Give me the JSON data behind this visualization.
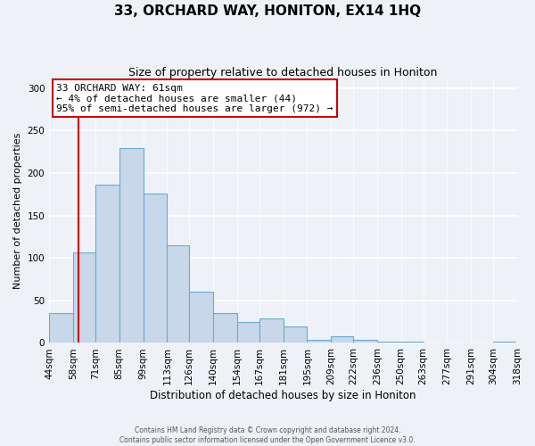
{
  "title": "33, ORCHARD WAY, HONITON, EX14 1HQ",
  "subtitle": "Size of property relative to detached houses in Honiton",
  "xlabel": "Distribution of detached houses by size in Honiton",
  "ylabel": "Number of detached properties",
  "bar_left_edges": [
    44,
    58,
    71,
    85,
    99,
    113,
    126,
    140,
    154,
    167,
    181,
    195,
    209,
    222,
    236,
    250,
    263,
    277,
    291,
    304
  ],
  "bar_heights": [
    35,
    107,
    186,
    229,
    176,
    115,
    60,
    35,
    25,
    29,
    19,
    4,
    8,
    4,
    2,
    2,
    1,
    0,
    0,
    2
  ],
  "bin_labels": [
    "44sqm",
    "58sqm",
    "71sqm",
    "85sqm",
    "99sqm",
    "113sqm",
    "126sqm",
    "140sqm",
    "154sqm",
    "167sqm",
    "181sqm",
    "195sqm",
    "209sqm",
    "222sqm",
    "236sqm",
    "250sqm",
    "263sqm",
    "277sqm",
    "291sqm",
    "304sqm",
    "318sqm"
  ],
  "bar_color": "#c8d8ea",
  "bar_edge_color": "#6aaad4",
  "red_line_x": 61,
  "annotation_title": "33 ORCHARD WAY: 61sqm",
  "annotation_line1": "← 4% of detached houses are smaller (44)",
  "annotation_line2": "95% of semi-detached houses are larger (972) →",
  "annotation_box_color": "#ffffff",
  "annotation_box_edge": "#cc0000",
  "red_line_color": "#cc0000",
  "ylim": [
    0,
    310
  ],
  "yticks": [
    0,
    50,
    100,
    150,
    200,
    250,
    300
  ],
  "footer1": "Contains HM Land Registry data © Crown copyright and database right 2024.",
  "footer2": "Contains public sector information licensed under the Open Government Licence v3.0.",
  "background_color": "#eef2f7",
  "title_fontsize": 11,
  "subtitle_fontsize": 9,
  "xlabel_fontsize": 8.5,
  "ylabel_fontsize": 8,
  "tick_fontsize": 7.5,
  "annot_fontsize": 8
}
